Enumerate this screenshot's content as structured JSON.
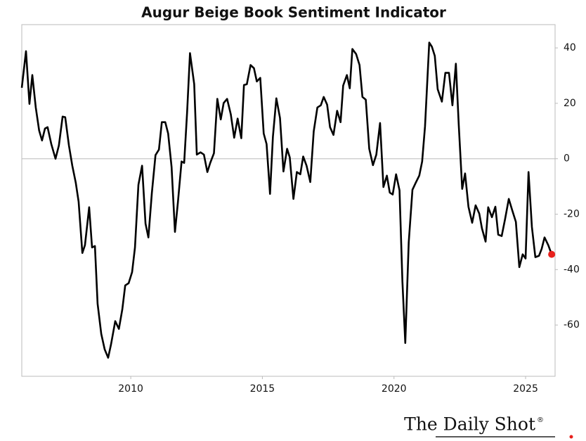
{
  "chart_data": {
    "type": "line",
    "title": "Augur Beige Book Sentiment Indicator",
    "x": [
      2005.86,
      2006.02,
      2006.15,
      2006.26,
      2006.39,
      2006.52,
      2006.63,
      2006.74,
      2006.84,
      2006.98,
      2007.14,
      2007.27,
      2007.41,
      2007.51,
      2007.65,
      2007.78,
      2007.91,
      2008.02,
      2008.16,
      2008.26,
      2008.42,
      2008.53,
      2008.64,
      2008.74,
      2008.88,
      2009.01,
      2009.14,
      2009.25,
      2009.41,
      2009.55,
      2009.68,
      2009.79,
      2009.92,
      2010.05,
      2010.16,
      2010.29,
      2010.43,
      2010.56,
      2010.67,
      2010.8,
      2010.94,
      2011.07,
      2011.18,
      2011.31,
      2011.42,
      2011.55,
      2011.68,
      2011.79,
      2011.93,
      2012.03,
      2012.14,
      2012.25,
      2012.41,
      2012.51,
      2012.65,
      2012.78,
      2012.91,
      2013.02,
      2013.16,
      2013.29,
      2013.42,
      2013.53,
      2013.66,
      2013.8,
      2013.93,
      2014.06,
      2014.2,
      2014.3,
      2014.41,
      2014.55,
      2014.68,
      2014.79,
      2014.92,
      2015.05,
      2015.16,
      2015.29,
      2015.4,
      2015.53,
      2015.67,
      2015.8,
      2015.94,
      2016.04,
      2016.18,
      2016.31,
      2016.44,
      2016.55,
      2016.68,
      2016.82,
      2016.95,
      2017.09,
      2017.22,
      2017.33,
      2017.46,
      2017.57,
      2017.7,
      2017.84,
      2017.97,
      2018.07,
      2018.21,
      2018.32,
      2018.42,
      2018.56,
      2018.69,
      2018.8,
      2018.93,
      2019.06,
      2019.2,
      2019.33,
      2019.47,
      2019.6,
      2019.73,
      2019.84,
      2019.95,
      2020.08,
      2020.21,
      2020.32,
      2020.43,
      2020.56,
      2020.7,
      2020.83,
      2020.96,
      2021.07,
      2021.18,
      2021.34,
      2021.44,
      2021.55,
      2021.66,
      2021.82,
      2021.95,
      2022.09,
      2022.22,
      2022.35,
      2022.46,
      2022.59,
      2022.7,
      2022.83,
      2022.97,
      2023.1,
      2023.24,
      2023.34,
      2023.48,
      2023.58,
      2023.72,
      2023.85,
      2023.96,
      2024.09,
      2024.22,
      2024.36,
      2024.49,
      2024.63,
      2024.76,
      2024.89,
      2025.0,
      2025.11,
      2025.24,
      2025.37,
      2025.51,
      2025.61,
      2025.72,
      2025.86,
      2025.99
    ],
    "values": [
      25.6,
      38.8,
      19.8,
      30.2,
      18.5,
      10.2,
      6.6,
      10.9,
      11.4,
      5.3,
      0,
      4.8,
      15.2,
      15.0,
      4.8,
      -2.5,
      -8.6,
      -15.5,
      -34.0,
      -31.2,
      -17.5,
      -32.0,
      -31.5,
      -52.3,
      -63.2,
      -68.8,
      -71.8,
      -67.0,
      -58.6,
      -61.4,
      -54.3,
      -45.7,
      -44.9,
      -40.9,
      -32.0,
      -9.4,
      -2.5,
      -23.4,
      -28.4,
      -12.4,
      1.3,
      3.3,
      13.2,
      13.2,
      9.1,
      -3.0,
      -26.4,
      -15.7,
      -1.0,
      -1.5,
      16.8,
      38.1,
      26.9,
      1.5,
      2.3,
      1.5,
      -4.8,
      -1.5,
      2.0,
      21.6,
      14.2,
      20.1,
      21.6,
      16.0,
      7.6,
      14.5,
      7.4,
      26.6,
      26.9,
      33.8,
      32.7,
      27.9,
      29.2,
      9.1,
      5.3,
      -12.7,
      7.9,
      21.8,
      14.7,
      -4.6,
      3.6,
      0.5,
      -14.5,
      -4.8,
      -5.6,
      0.8,
      -2.5,
      -8.4,
      9.9,
      18.5,
      19.3,
      22.3,
      19.5,
      11.4,
      8.6,
      17.3,
      13.2,
      26.4,
      30.2,
      25.4,
      39.6,
      37.8,
      33.8,
      22.3,
      21.3,
      3.6,
      -2.3,
      1.5,
      12.9,
      -10.2,
      -6.1,
      -12.2,
      -12.9,
      -5.6,
      -11.4,
      -44.2,
      -66.5,
      -30.2,
      -11.2,
      -8.6,
      -6.1,
      -1.0,
      11.7,
      41.9,
      40.4,
      37.1,
      25.1,
      20.6,
      31.0,
      31.0,
      19.3,
      34.3,
      12.2,
      -10.9,
      -5.3,
      -17.3,
      -23.1,
      -16.8,
      -19.8,
      -25.1,
      -29.9,
      -17.5,
      -21.1,
      -17.3,
      -27.4,
      -27.9,
      -21.8,
      -14.5,
      -18.5,
      -22.8,
      -39.1,
      -34.5,
      -36.0,
      -4.8,
      -24.6,
      -35.5,
      -35.0,
      -32.5,
      -28.4,
      -31.2,
      -34.5
    ],
    "color": "#000000",
    "highlight_color": "#e8201c",
    "xlim": [
      2005.86,
      2026.12
    ],
    "xticks": [
      2010,
      2015,
      2020,
      2025
    ],
    "ylim": [
      -78.5,
      48.4
    ],
    "yticks": [
      -60,
      -40,
      -20,
      0,
      20,
      40
    ],
    "zero_line": true,
    "source": {
      "name": "The Daily Shot",
      "mark": "®"
    }
  }
}
